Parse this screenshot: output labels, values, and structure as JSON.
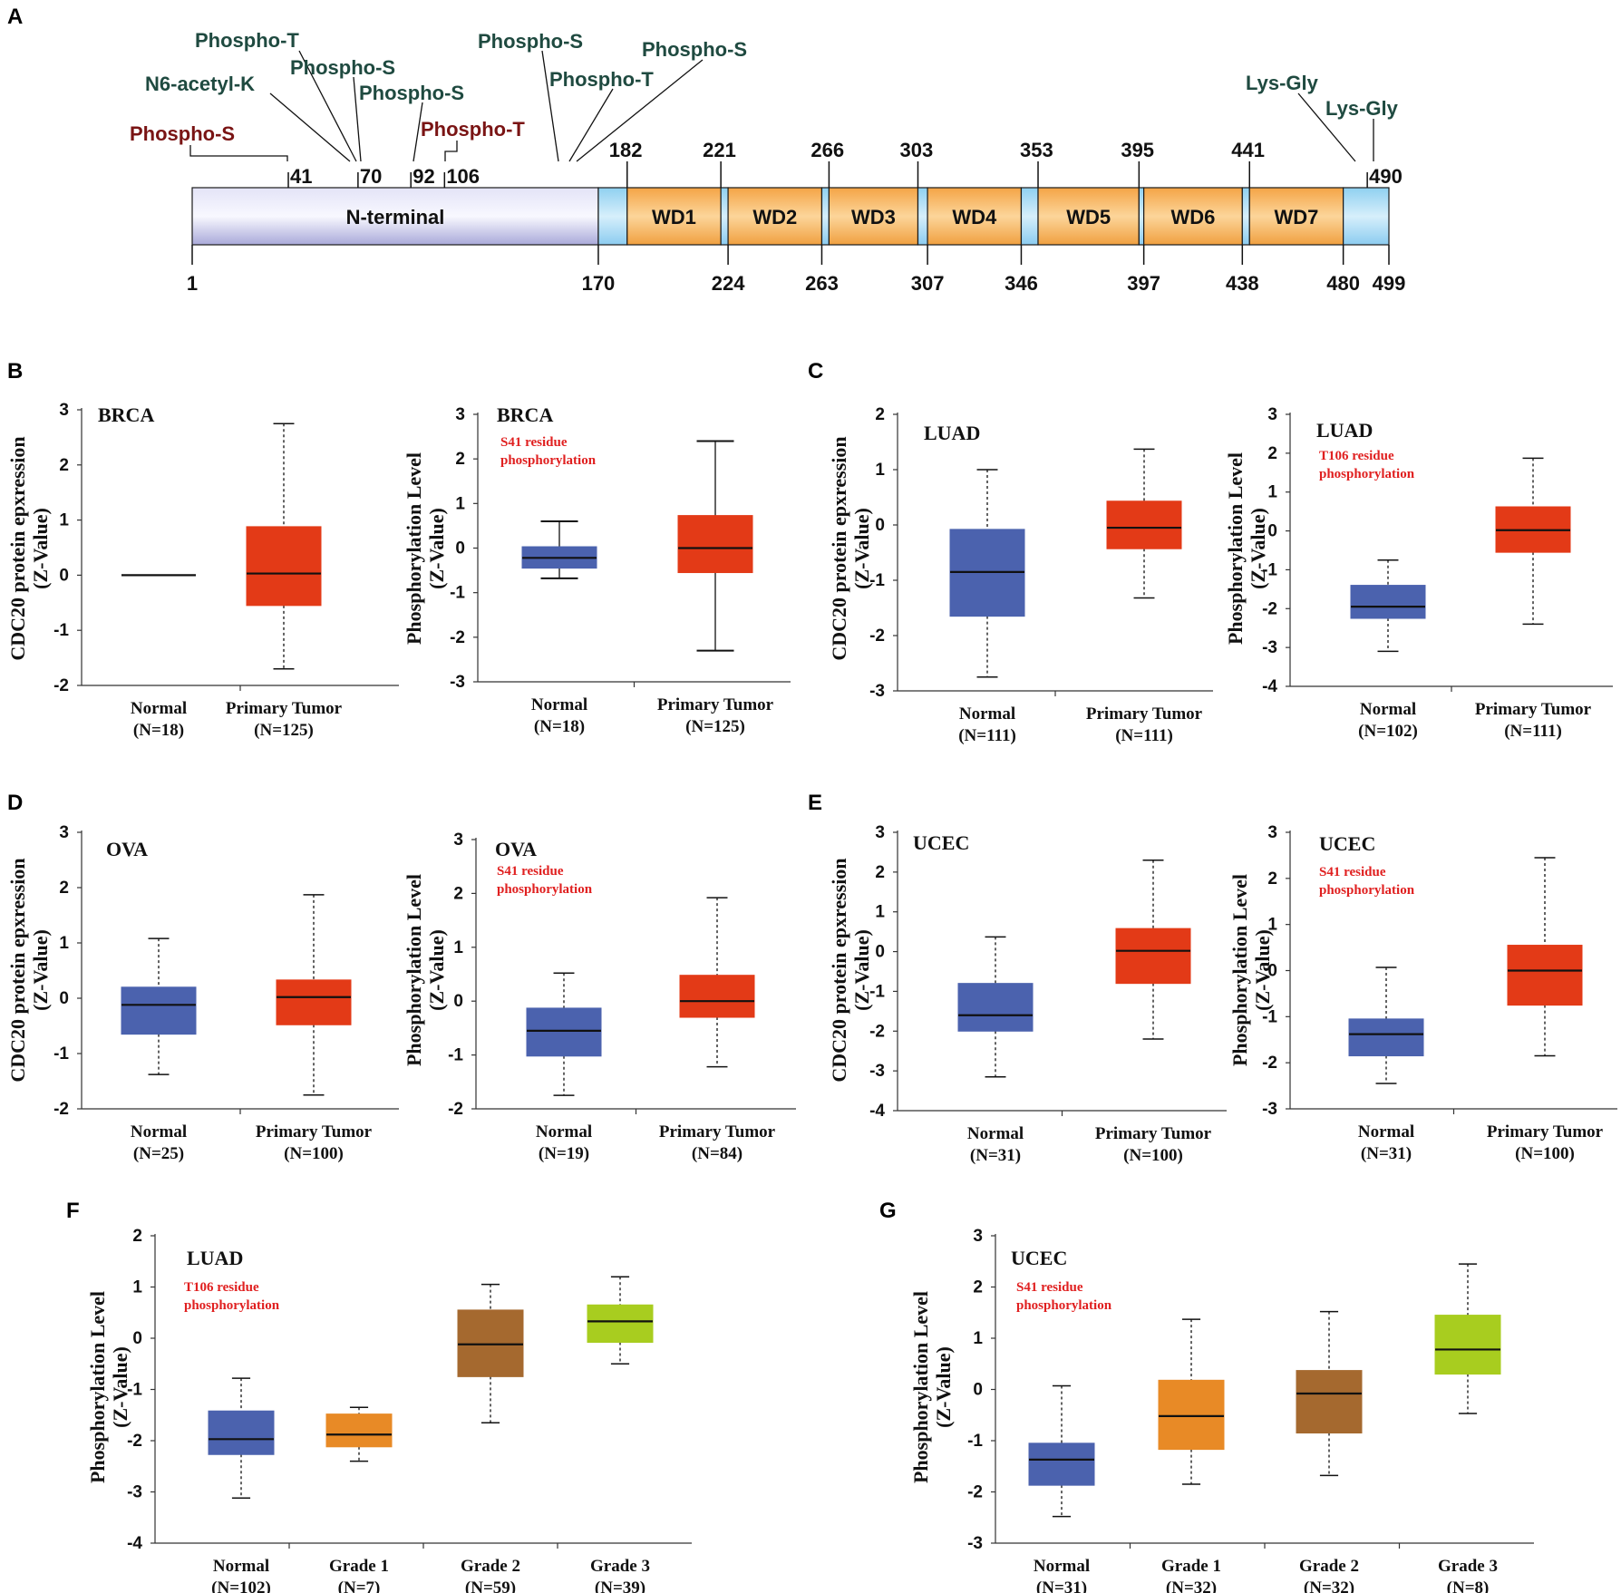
{
  "panels": {
    "A": "A",
    "B": "B",
    "C": "C",
    "D": "D",
    "E": "E",
    "F": "F",
    "G": "G"
  },
  "domain_diagram": {
    "domains": [
      {
        "label": "N-terminal",
        "start": 1,
        "end": 170,
        "color": "#c8c8ea"
      },
      {
        "label": "",
        "start": 170,
        "end": 182,
        "color": "#a6daf4"
      },
      {
        "label": "WD1",
        "start": 182,
        "end": 221,
        "color": "#f6b35a"
      },
      {
        "label": "",
        "start": 221,
        "end": 224,
        "color": "#a6daf4"
      },
      {
        "label": "WD2",
        "start": 224,
        "end": 263,
        "color": "#f6b35a"
      },
      {
        "label": "",
        "start": 263,
        "end": 266,
        "color": "#a6daf4"
      },
      {
        "label": "WD3",
        "start": 266,
        "end": 303,
        "color": "#f6b35a"
      },
      {
        "label": "",
        "start": 303,
        "end": 307,
        "color": "#a6daf4"
      },
      {
        "label": "WD4",
        "start": 307,
        "end": 346,
        "color": "#f6b35a"
      },
      {
        "label": "",
        "start": 346,
        "end": 353,
        "color": "#a6daf4"
      },
      {
        "label": "WD5",
        "start": 353,
        "end": 395,
        "color": "#f6b35a"
      },
      {
        "label": "",
        "start": 395,
        "end": 397,
        "color": "#a6daf4"
      },
      {
        "label": "WD6",
        "start": 397,
        "end": 438,
        "color": "#f6b35a"
      },
      {
        "label": "",
        "start": 438,
        "end": 441,
        "color": "#a6daf4"
      },
      {
        "label": "WD7",
        "start": 441,
        "end": 480,
        "color": "#f6b35a"
      },
      {
        "label": "",
        "start": 480,
        "end": 499,
        "color": "#a6daf4"
      }
    ],
    "top_ticks": [
      "41",
      "70",
      "92",
      "106",
      "182",
      "221",
      "266",
      "303",
      "353",
      "395",
      "441",
      "490"
    ],
    "bottom_ticks": [
      "1",
      "170",
      "224",
      "263",
      "307",
      "346",
      "397",
      "438",
      "480",
      "499"
    ],
    "modifications": [
      {
        "label": "Phospho-T",
        "color": "#1f4a40"
      },
      {
        "label": "N6-acetyl-K",
        "color": "#1f4a40"
      },
      {
        "label": "Phospho-S",
        "color": "#1f4a40"
      },
      {
        "label": "Phospho-S",
        "color": "#1f4a40"
      },
      {
        "label": "Phospho-S",
        "color": "#7a1414"
      },
      {
        "label": "Phospho-T",
        "color": "#7a1414"
      },
      {
        "label": "Phospho-S",
        "color": "#1f4a40"
      },
      {
        "label": "Phospho-T",
        "color": "#1f4a40"
      },
      {
        "label": "Phospho-S",
        "color": "#1f4a40"
      },
      {
        "label": "Lys-Gly",
        "color": "#1f4a40"
      },
      {
        "label": "Lys-Gly",
        "color": "#1f4a40"
      }
    ]
  },
  "colors": {
    "normal": "#4b62ae",
    "tumor": "#e33a17",
    "grade1": "#e88a26",
    "grade2": "#a5692f",
    "grade3": "#a8cd1f",
    "annotation_red": "#e02020"
  },
  "chart_data": [
    {
      "id": "B1",
      "type": "box",
      "title": "BRCA",
      "annotation": "",
      "ylabel1": "CDC20 protein epxression",
      "ylabel2": "(Z-Value)",
      "ylim": [
        -2,
        3
      ],
      "yticks": [
        "3",
        "2",
        "1",
        "0",
        "-1",
        "-2"
      ],
      "groups": [
        {
          "name": "Normal",
          "n": "(N=18)",
          "color": "#4b62ae",
          "min": 0,
          "q1": 0,
          "median": 0,
          "q3": 0,
          "max": 0,
          "whisker": "none"
        },
        {
          "name": "Primary Tumor",
          "n": "(N=125)",
          "color": "#e33a17",
          "min": -1.7,
          "q1": -0.55,
          "median": 0.03,
          "q3": 0.88,
          "max": 2.75,
          "whisker": "dashed"
        }
      ]
    },
    {
      "id": "B2",
      "type": "box",
      "title": "BRCA",
      "annotation": [
        "S41 residue",
        "phosphorylation"
      ],
      "ylabel1": "Phosphorylation Level",
      "ylabel2": "(Z-Value)",
      "ylim": [
        -3,
        3
      ],
      "yticks": [
        "3",
        "2",
        "1",
        "0",
        "-1",
        "-2",
        "-3"
      ],
      "groups": [
        {
          "name": "Normal",
          "n": "(N=18)",
          "color": "#4b62ae",
          "min": -0.68,
          "q1": -0.45,
          "median": -0.22,
          "q3": 0.03,
          "max": 0.6,
          "whisker": "solid"
        },
        {
          "name": "Primary Tumor",
          "n": "(N=125)",
          "color": "#e33a17",
          "min": -2.3,
          "q1": -0.55,
          "median": 0.0,
          "q3": 0.73,
          "max": 2.4,
          "whisker": "solid"
        }
      ]
    },
    {
      "id": "C1",
      "type": "box",
      "title": "LUAD",
      "annotation": "",
      "ylabel1": "CDC20 protein epxression",
      "ylabel2": "(Z-Value)",
      "ylim": [
        -3,
        2
      ],
      "yticks": [
        "2",
        "1",
        "0",
        "-1",
        "-2",
        "-3"
      ],
      "groups": [
        {
          "name": "Normal",
          "n": "(N=111)",
          "color": "#4b62ae",
          "min": -2.75,
          "q1": -1.65,
          "median": -0.85,
          "q3": -0.08,
          "max": 1.0,
          "whisker": "dashed"
        },
        {
          "name": "Primary Tumor",
          "n": "(N=111)",
          "color": "#e33a17",
          "min": -1.32,
          "q1": -0.43,
          "median": -0.05,
          "q3": 0.43,
          "max": 1.37,
          "whisker": "dashed"
        }
      ]
    },
    {
      "id": "C2",
      "type": "box",
      "title": "LUAD",
      "annotation": [
        "T106 residue",
        "phosphorylation"
      ],
      "ylabel1": "Phosphorylation Level",
      "ylabel2": "(Z-Value)",
      "ylim": [
        -4,
        3
      ],
      "yticks": [
        "3",
        "2",
        "1",
        "0",
        "-1",
        "-2",
        "-3",
        "-4"
      ],
      "groups": [
        {
          "name": "Normal",
          "n": "(N=102)",
          "color": "#4b62ae",
          "min": -3.1,
          "q1": -2.25,
          "median": -1.95,
          "q3": -1.4,
          "max": -0.75,
          "whisker": "dashed"
        },
        {
          "name": "Primary Tumor",
          "n": "(N=111)",
          "color": "#e33a17",
          "min": -2.4,
          "q1": -0.55,
          "median": 0.02,
          "q3": 0.62,
          "max": 1.87,
          "whisker": "dashed"
        }
      ]
    },
    {
      "id": "D1",
      "type": "box",
      "title": "OVA",
      "annotation": "",
      "ylabel1": "CDC20 protein epxression",
      "ylabel2": "(Z-Value)",
      "ylim": [
        -2,
        3
      ],
      "yticks": [
        "3",
        "2",
        "1",
        "0",
        "-1",
        "-2"
      ],
      "groups": [
        {
          "name": "Normal",
          "n": "(N=25)",
          "color": "#4b62ae",
          "min": -1.38,
          "q1": -0.65,
          "median": -0.12,
          "q3": 0.2,
          "max": 1.08,
          "whisker": "dashed"
        },
        {
          "name": "Primary Tumor",
          "n": "(N=100)",
          "color": "#e33a17",
          "min": -1.75,
          "q1": -0.48,
          "median": 0.02,
          "q3": 0.33,
          "max": 1.87,
          "whisker": "dashed"
        }
      ]
    },
    {
      "id": "D2",
      "type": "box",
      "title": "OVA",
      "annotation": [
        "S41 residue",
        "phosphorylation"
      ],
      "ylabel1": "Phosphorylation Level",
      "ylabel2": "(Z-Value)",
      "ylim": [
        -2,
        3
      ],
      "yticks": [
        "3",
        "2",
        "1",
        "0",
        "-1",
        "-2"
      ],
      "groups": [
        {
          "name": "Normal",
          "n": "(N=19)",
          "color": "#4b62ae",
          "min": -1.75,
          "q1": -1.02,
          "median": -0.55,
          "q3": -0.13,
          "max": 0.52,
          "whisker": "dashed"
        },
        {
          "name": "Primary Tumor",
          "n": "(N=84)",
          "color": "#e33a17",
          "min": -1.22,
          "q1": -0.3,
          "median": 0.0,
          "q3": 0.48,
          "max": 1.92,
          "whisker": "dashed"
        }
      ]
    },
    {
      "id": "E1",
      "type": "box",
      "title": "UCEC",
      "annotation": "",
      "ylabel1": "CDC20 protein epxression",
      "ylabel2": "(Z-Value)",
      "ylim": [
        -4,
        3
      ],
      "yticks": [
        "3",
        "2",
        "1",
        "0",
        "-1",
        "-2",
        "-3",
        "-4"
      ],
      "groups": [
        {
          "name": "Normal",
          "n": "(N=31)",
          "color": "#4b62ae",
          "min": -3.15,
          "q1": -2.0,
          "median": -1.6,
          "q3": -0.8,
          "max": 0.37,
          "whisker": "dashed"
        },
        {
          "name": "Primary Tumor",
          "n": "(N=100)",
          "color": "#e33a17",
          "min": -2.2,
          "q1": -0.8,
          "median": 0.02,
          "q3": 0.58,
          "max": 2.3,
          "whisker": "dashed"
        }
      ]
    },
    {
      "id": "E2",
      "type": "box",
      "title": "UCEC",
      "annotation": [
        "S41 residue",
        "phosphorylation"
      ],
      "ylabel1": "Phosphorylation Level",
      "ylabel2": "(Z-Value)",
      "ylim": [
        -3,
        3
      ],
      "yticks": [
        "3",
        "2",
        "1",
        "0",
        "-1",
        "-2",
        "-3"
      ],
      "groups": [
        {
          "name": "Normal",
          "n": "(N=31)",
          "color": "#4b62ae",
          "min": -2.45,
          "q1": -1.85,
          "median": -1.38,
          "q3": -1.05,
          "max": 0.07,
          "whisker": "dashed"
        },
        {
          "name": "Primary Tumor",
          "n": "(N=100)",
          "color": "#e33a17",
          "min": -1.85,
          "q1": -0.75,
          "median": 0.0,
          "q3": 0.55,
          "max": 2.45,
          "whisker": "dashed"
        }
      ]
    },
    {
      "id": "F",
      "type": "box",
      "title": "LUAD",
      "annotation": [
        "T106 residue",
        "phosphorylation"
      ],
      "ylabel1": "Phosphorylation Level",
      "ylabel2": "(Z-Value)",
      "ylim": [
        -4,
        2
      ],
      "yticks": [
        "2",
        "1",
        "0",
        "-1",
        "-2",
        "-3",
        "-4"
      ],
      "groups": [
        {
          "name": "Normal",
          "n": "(N=102)",
          "color": "#4b62ae",
          "min": -3.12,
          "q1": -2.27,
          "median": -1.97,
          "q3": -1.42,
          "max": -0.78,
          "whisker": "dashed"
        },
        {
          "name": "Grade 1",
          "n": "(N=7)",
          "color": "#e88a26",
          "min": -2.4,
          "q1": -2.12,
          "median": -1.88,
          "q3": -1.48,
          "max": -1.35,
          "whisker": "dashed"
        },
        {
          "name": "Grade 2",
          "n": "(N=59)",
          "color": "#a5692f",
          "min": -1.65,
          "q1": -0.75,
          "median": -0.12,
          "q3": 0.55,
          "max": 1.05,
          "whisker": "dashed"
        },
        {
          "name": "Grade 3",
          "n": "(N=39)",
          "color": "#a8cd1f",
          "min": -0.5,
          "q1": -0.08,
          "median": 0.33,
          "q3": 0.65,
          "max": 1.2,
          "whisker": "dashed"
        }
      ]
    },
    {
      "id": "G",
      "type": "box",
      "title": "UCEC",
      "annotation": [
        "S41 residue",
        "phosphorylation"
      ],
      "ylabel1": "Phosphorylation Level",
      "ylabel2": "(Z-Value)",
      "ylim": [
        -3,
        3
      ],
      "yticks": [
        "3",
        "2",
        "1",
        "0",
        "-1",
        "-2",
        "-3"
      ],
      "groups": [
        {
          "name": "Normal",
          "n": "(N=31)",
          "color": "#4b62ae",
          "min": -2.48,
          "q1": -1.87,
          "median": -1.37,
          "q3": -1.05,
          "max": 0.07,
          "whisker": "dashed"
        },
        {
          "name": "Grade 1",
          "n": "(N=32)",
          "color": "#e88a26",
          "min": -1.85,
          "q1": -1.17,
          "median": -0.52,
          "q3": 0.18,
          "max": 1.37,
          "whisker": "dashed"
        },
        {
          "name": "Grade 2",
          "n": "(N=32)",
          "color": "#a5692f",
          "min": -1.68,
          "q1": -0.85,
          "median": -0.08,
          "q3": 0.37,
          "max": 1.52,
          "whisker": "dashed"
        },
        {
          "name": "Grade 3",
          "n": "(N=8)",
          "color": "#a8cd1f",
          "min": -0.47,
          "q1": 0.3,
          "median": 0.78,
          "q3": 1.45,
          "max": 2.45,
          "whisker": "dashed"
        }
      ]
    }
  ]
}
